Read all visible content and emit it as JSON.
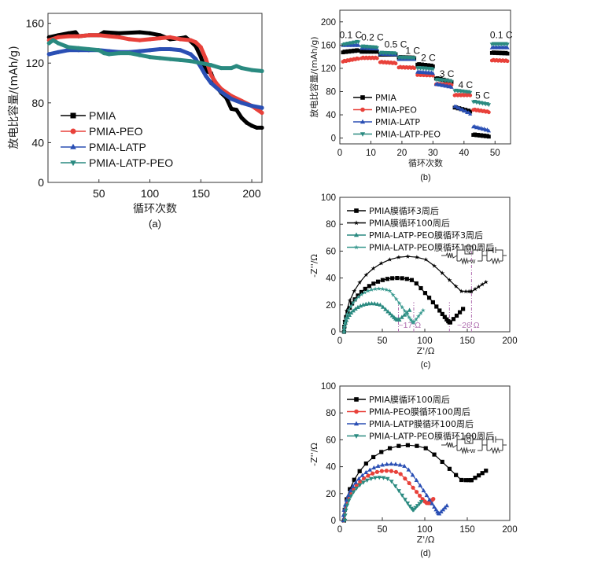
{
  "colors": {
    "black": "#000000",
    "red": "#e8413a",
    "blue": "#2a4fb4",
    "teal": "#2a8a80",
    "teal_light": "#3a9a90",
    "annotation": "#b070b0",
    "axis": "#333333"
  },
  "chart_data": [
    {
      "id": "a",
      "type": "line",
      "panel_label": "(a)",
      "xlabel": "循环次数",
      "ylabel": "放电比容量/(mAh/g)",
      "xlim": [
        0,
        210
      ],
      "ylim": [
        0,
        170
      ],
      "xticks": [
        50,
        100,
        150,
        200
      ],
      "yticks": [
        0,
        40,
        80,
        120,
        160
      ],
      "legend_position": "center-left",
      "series": [
        {
          "name": "PMIA",
          "color_key": "black",
          "marker": "square",
          "x": [
            1,
            10,
            20,
            27,
            30,
            40,
            50,
            55,
            70,
            90,
            100,
            110,
            120,
            130,
            135,
            140,
            145,
            150,
            155,
            160,
            165,
            170,
            175,
            180,
            185,
            190,
            195,
            200,
            205,
            210
          ],
          "y": [
            146,
            148,
            150,
            151,
            147,
            148,
            148,
            151,
            150,
            151,
            150,
            148,
            144,
            145,
            146,
            142,
            137,
            126,
            112,
            110,
            97,
            90,
            85,
            74,
            73,
            65,
            60,
            57,
            55,
            55
          ]
        },
        {
          "name": "PMIA-PEO",
          "color_key": "red",
          "marker": "circle",
          "x": [
            1,
            10,
            20,
            30,
            40,
            50,
            60,
            70,
            80,
            90,
            100,
            110,
            120,
            130,
            140,
            145,
            150,
            155,
            160,
            165,
            170,
            180,
            190,
            200,
            210
          ],
          "y": [
            143,
            146,
            147,
            147,
            148,
            148,
            147,
            146,
            144,
            143,
            144,
            145,
            146,
            144,
            143,
            141,
            136,
            124,
            108,
            100,
            94,
            87,
            82,
            77,
            70
          ]
        },
        {
          "name": "PMIA-LATP",
          "color_key": "blue",
          "marker": "triangle-up",
          "x": [
            1,
            10,
            20,
            30,
            40,
            50,
            60,
            70,
            80,
            90,
            100,
            110,
            120,
            130,
            140,
            145,
            150,
            155,
            160,
            170,
            180,
            190,
            200,
            210
          ],
          "y": [
            129,
            131,
            133,
            133,
            133,
            133,
            132,
            131,
            131,
            132,
            133,
            134,
            134,
            133,
            129,
            124,
            116,
            107,
            100,
            91,
            84,
            80,
            77,
            75
          ]
        },
        {
          "name": "PMIA-LATP-PEO",
          "color_key": "teal",
          "marker": "triangle-down",
          "x": [
            1,
            5,
            10,
            20,
            30,
            40,
            50,
            55,
            60,
            70,
            80,
            90,
            100,
            110,
            120,
            130,
            140,
            150,
            160,
            170,
            180,
            185,
            190,
            200,
            210
          ],
          "y": [
            140,
            143,
            140,
            136,
            135,
            134,
            133,
            130,
            129,
            130,
            130,
            128,
            126,
            125,
            124,
            123,
            122,
            120,
            118,
            115,
            115,
            117,
            115,
            113,
            112
          ]
        }
      ]
    },
    {
      "id": "b",
      "type": "scatter",
      "panel_label": "(b)",
      "xlabel": "循环次数",
      "ylabel": "放电比容量/(mAh/g)",
      "xlim": [
        0,
        55
      ],
      "ylim": [
        -10,
        220
      ],
      "xticks": [
        0,
        10,
        20,
        30,
        40,
        50
      ],
      "yticks": [
        0,
        40,
        80,
        120,
        160,
        200
      ],
      "legend_position": "bottom-left",
      "rate_labels": [
        {
          "text": "0.1 C",
          "x": 3.5,
          "y": 172
        },
        {
          "text": "0.2 C",
          "x": 10.5,
          "y": 168
        },
        {
          "text": "0.5 C",
          "x": 18,
          "y": 156
        },
        {
          "text": "1 C",
          "x": 23.5,
          "y": 145
        },
        {
          "text": "2 C",
          "x": 28.5,
          "y": 133
        },
        {
          "text": "3 C",
          "x": 34.5,
          "y": 105
        },
        {
          "text": "4 C",
          "x": 40.5,
          "y": 86
        },
        {
          "text": "5 C",
          "x": 46,
          "y": 68
        },
        {
          "text": "0.1 C",
          "x": 52,
          "y": 172
        }
      ],
      "series": [
        {
          "name": "PMIA",
          "color_key": "black",
          "marker": "square",
          "segments": [
            [
              1,
              6,
              148,
              151
            ],
            [
              7,
              12,
              149,
              149
            ],
            [
              13,
              18,
              144,
              144
            ],
            [
              19,
              24,
              139,
              138
            ],
            [
              25,
              30,
              127,
              124
            ],
            [
              31,
              36,
              103,
              97
            ],
            [
              37,
              42,
              53,
              46
            ],
            [
              43,
              48,
              6,
              3
            ],
            [
              49,
              54,
              147,
              146
            ]
          ]
        },
        {
          "name": "PMIA-PEO",
          "color_key": "red",
          "marker": "circle",
          "segments": [
            [
              1,
              6,
              132,
              137
            ],
            [
              7,
              12,
              138,
              138
            ],
            [
              13,
              18,
              131,
              129
            ],
            [
              19,
              24,
              122,
              121
            ],
            [
              25,
              30,
              109,
              108
            ],
            [
              31,
              36,
              93,
              92
            ],
            [
              37,
              42,
              74,
              74
            ],
            [
              43,
              48,
              49,
              45
            ],
            [
              49,
              54,
              134,
              133
            ]
          ]
        },
        {
          "name": "PMIA-LATP",
          "color_key": "blue",
          "marker": "triangle-up",
          "segments": [
            [
              1,
              6,
              160,
              160
            ],
            [
              7,
              12,
              155,
              154
            ],
            [
              13,
              18,
              145,
              144
            ],
            [
              19,
              24,
              136,
              136
            ],
            [
              25,
              30,
              114,
              112
            ],
            [
              31,
              36,
              93,
              88
            ],
            [
              37,
              42,
              55,
              42
            ],
            [
              43,
              48,
              20,
              13
            ],
            [
              49,
              54,
              156,
              156
            ]
          ]
        },
        {
          "name": "PMIA-LATP-PEO",
          "color_key": "teal",
          "marker": "triangle-down",
          "segments": [
            [
              1,
              6,
              161,
              166
            ],
            [
              7,
              12,
              158,
              156
            ],
            [
              13,
              18,
              147,
              146
            ],
            [
              19,
              24,
              139,
              138
            ],
            [
              25,
              30,
              121,
              119
            ],
            [
              31,
              36,
              101,
              98
            ],
            [
              37,
              42,
              82,
              79
            ],
            [
              43,
              48,
              63,
              58
            ],
            [
              49,
              54,
              162,
              162
            ]
          ]
        }
      ]
    },
    {
      "id": "c",
      "type": "scatter",
      "panel_label": "(c)",
      "xlabel": "Z'/Ω",
      "ylabel": "-Z''/Ω",
      "xlim": [
        0,
        200
      ],
      "ylim": [
        0,
        100
      ],
      "xticks": [
        0,
        50,
        100,
        150,
        200
      ],
      "yticks": [
        0,
        20,
        40,
        60,
        80,
        100
      ],
      "legend_position": "top-left",
      "annotations": [
        {
          "text": "~17 Ω",
          "x": 69,
          "y": 3,
          "vline_x": [
            69,
            87
          ]
        },
        {
          "text": "~26 Ω",
          "x": 138,
          "y": 3,
          "vline_x": [
            129,
            155
          ]
        }
      ],
      "circuit_inset": "R-(Q‖(R-W))-(C‖R)",
      "series": [
        {
          "name": "PMIA膜循环3周后",
          "color_key": "black",
          "marker": "square",
          "arc": {
            "x0": 5,
            "x_min": 130,
            "peak": 40,
            "y_min": 7,
            "tail_x": 145,
            "tail_y": 17,
            "n": 34
          }
        },
        {
          "name": "PMIA膜循环100周后",
          "color_key": "black",
          "marker": "star",
          "arc": {
            "x0": 5,
            "x_min": 155,
            "peak": 56,
            "y_min": 30,
            "tail_x": 172,
            "tail_y": 37,
            "n": 22
          }
        },
        {
          "name": "PMIA-LATP-PEO膜循环3周后",
          "color_key": "teal",
          "marker": "triangle-up",
          "arc": {
            "x0": 5,
            "x_min": 70,
            "peak": 21,
            "y_min": 9,
            "tail_x": 82,
            "tail_y": 16,
            "n": 30,
            "rise_y": 14
          }
        },
        {
          "name": "PMIA-LATP-PEO膜循环100周后",
          "color_key": "teal_light",
          "marker": "star",
          "arc": {
            "x0": 5,
            "x_min": 87,
            "peak": 32,
            "y_min": 7,
            "tail_x": 98,
            "tail_y": 16,
            "n": 30
          }
        }
      ]
    },
    {
      "id": "d",
      "type": "scatter",
      "panel_label": "(d)",
      "xlabel": "Z'/Ω",
      "ylabel": "-Z''/Ω",
      "xlim": [
        0,
        200
      ],
      "ylim": [
        0,
        100
      ],
      "xticks": [
        0,
        50,
        100,
        150,
        200
      ],
      "yticks": [
        0,
        20,
        40,
        60,
        80,
        100
      ],
      "legend_position": "top-left",
      "circuit_inset": "R-(Q‖(R-W))-(C‖R)",
      "series": [
        {
          "name": "PMIA膜循环100周后",
          "color_key": "black",
          "marker": "square",
          "arc": {
            "x0": 5,
            "x_min": 155,
            "peak": 56,
            "y_min": 30,
            "tail_x": 172,
            "tail_y": 37,
            "n": 22
          }
        },
        {
          "name": "PMIA-PEO膜循环100周后",
          "color_key": "red",
          "marker": "circle",
          "arc": {
            "x0": 5,
            "x_min": 105,
            "peak": 37,
            "y_min": 13,
            "tail_x": 110,
            "tail_y": 16,
            "n": 28
          }
        },
        {
          "name": "PMIA-LATP膜循环100周后",
          "color_key": "blue",
          "marker": "triangle-up",
          "arc": {
            "x0": 4,
            "x_min": 117,
            "peak": 42,
            "y_min": 5,
            "tail_x": 126,
            "tail_y": 11,
            "n": 34
          }
        },
        {
          "name": "PMIA-LATP-PEO膜循环100周后",
          "color_key": "teal",
          "marker": "triangle-down",
          "arc": {
            "x0": 6,
            "x_min": 87,
            "peak": 32,
            "y_min": 8,
            "tail_x": 96,
            "tail_y": 14,
            "n": 26
          }
        }
      ]
    }
  ]
}
